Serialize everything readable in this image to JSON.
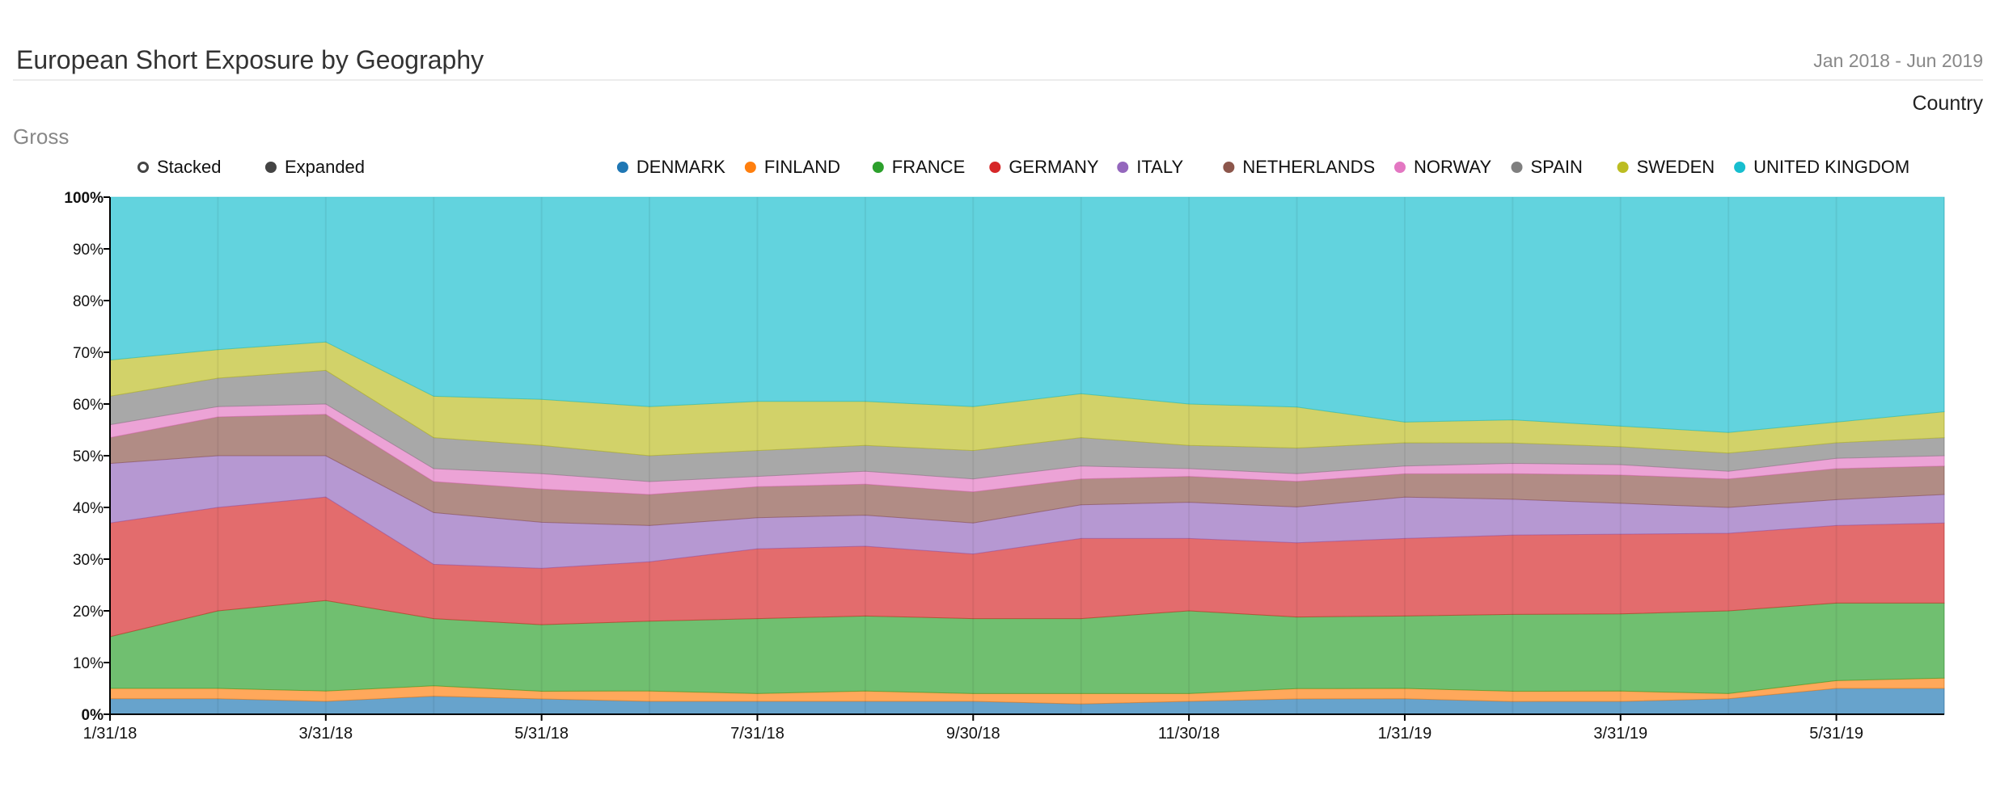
{
  "header": {
    "title": "European Short Exposure by Geography",
    "date_range": "Jan 2018 - Jun 2019",
    "group_label": "Country",
    "measure_label": "Gross"
  },
  "controls": {
    "modes": [
      {
        "label": "Stacked",
        "selected": false
      },
      {
        "label": "Expanded",
        "selected": true
      }
    ]
  },
  "chart_data": {
    "type": "area",
    "stacking": "expanded",
    "ylim": [
      0,
      100
    ],
    "y_ticks": [
      "0%",
      "10%",
      "20%",
      "30%",
      "40%",
      "50%",
      "60%",
      "70%",
      "80%",
      "90%",
      "100%"
    ],
    "x": [
      "1/31/18",
      "2/28/18",
      "3/31/18",
      "4/30/18",
      "5/31/18",
      "6/30/18",
      "7/31/18",
      "8/31/18",
      "9/30/18",
      "10/31/18",
      "11/30/18",
      "12/31/18",
      "1/31/19",
      "2/28/19",
      "3/31/19",
      "4/30/19",
      "5/31/19",
      "6/30/19"
    ],
    "x_tick_labels": [
      "1/31/18",
      "3/31/18",
      "5/31/18",
      "7/31/18",
      "9/30/18",
      "11/30/18",
      "1/31/19",
      "3/31/19",
      "5/31/19"
    ],
    "legend_placement": "top",
    "series": [
      {
        "name": "DENMARK",
        "color": "#1f77b4",
        "values": [
          3.0,
          3.0,
          2.5,
          3.5,
          3.0,
          2.5,
          2.5,
          2.5,
          2.5,
          2.0,
          2.5,
          3.0,
          3.0,
          2.5,
          2.5,
          3.0,
          5.0,
          5.0
        ]
      },
      {
        "name": "FINLAND",
        "color": "#ff7f0e",
        "values": [
          2.0,
          2.0,
          2.0,
          2.0,
          1.5,
          2.0,
          1.5,
          2.0,
          1.5,
          2.0,
          1.5,
          2.0,
          2.0,
          2.0,
          2.0,
          1.0,
          1.5,
          2.0
        ]
      },
      {
        "name": "FRANCE",
        "color": "#2ca02c",
        "values": [
          10.0,
          15.0,
          17.5,
          13.0,
          13.0,
          13.5,
          14.5,
          14.5,
          14.5,
          14.5,
          16.0,
          14.0,
          14.0,
          15.0,
          15.0,
          16.0,
          15.0,
          14.5
        ]
      },
      {
        "name": "GERMANY",
        "color": "#d62728",
        "values": [
          22.0,
          20.0,
          20.0,
          10.5,
          11.0,
          11.5,
          13.5,
          13.5,
          12.5,
          15.5,
          14.0,
          14.5,
          15.0,
          15.5,
          15.5,
          15.0,
          15.0,
          15.5
        ]
      },
      {
        "name": "ITALY",
        "color": "#9467bd",
        "values": [
          11.5,
          10.0,
          8.0,
          10.0,
          9.0,
          7.0,
          6.0,
          6.0,
          6.0,
          6.5,
          7.0,
          7.0,
          8.0,
          7.0,
          6.0,
          5.0,
          5.0,
          5.5
        ]
      },
      {
        "name": "NETHERLANDS",
        "color": "#8c564b",
        "values": [
          5.0,
          7.5,
          8.0,
          6.0,
          6.5,
          6.0,
          6.0,
          6.0,
          6.0,
          5.0,
          5.0,
          5.0,
          4.5,
          5.0,
          5.5,
          5.5,
          6.0,
          5.5
        ]
      },
      {
        "name": "NORWAY",
        "color": "#e377c2",
        "values": [
          2.5,
          2.0,
          2.0,
          2.5,
          3.0,
          2.5,
          2.0,
          2.5,
          2.5,
          2.5,
          1.5,
          1.5,
          1.5,
          2.0,
          2.0,
          1.5,
          2.0,
          2.0
        ]
      },
      {
        "name": "SPAIN",
        "color": "#7f7f7f",
        "values": [
          5.5,
          5.5,
          6.5,
          6.0,
          5.5,
          5.0,
          5.0,
          5.0,
          5.5,
          5.5,
          4.5,
          5.0,
          4.5,
          4.0,
          3.5,
          3.5,
          3.0,
          3.5
        ]
      },
      {
        "name": "SWEDEN",
        "color": "#bcbd22",
        "values": [
          7.0,
          5.5,
          5.5,
          8.0,
          9.0,
          9.5,
          9.5,
          8.5,
          8.5,
          8.5,
          8.0,
          8.0,
          4.0,
          4.5,
          4.0,
          4.0,
          4.0,
          5.0
        ]
      },
      {
        "name": "UNITED KINGDOM",
        "color": "#17becf",
        "values": [
          31.5,
          29.5,
          28.0,
          38.5,
          39.5,
          40.5,
          39.5,
          39.5,
          40.5,
          38.0,
          40.0,
          41.0,
          43.5,
          43.5,
          44.5,
          45.5,
          43.5,
          41.5
        ]
      }
    ]
  }
}
